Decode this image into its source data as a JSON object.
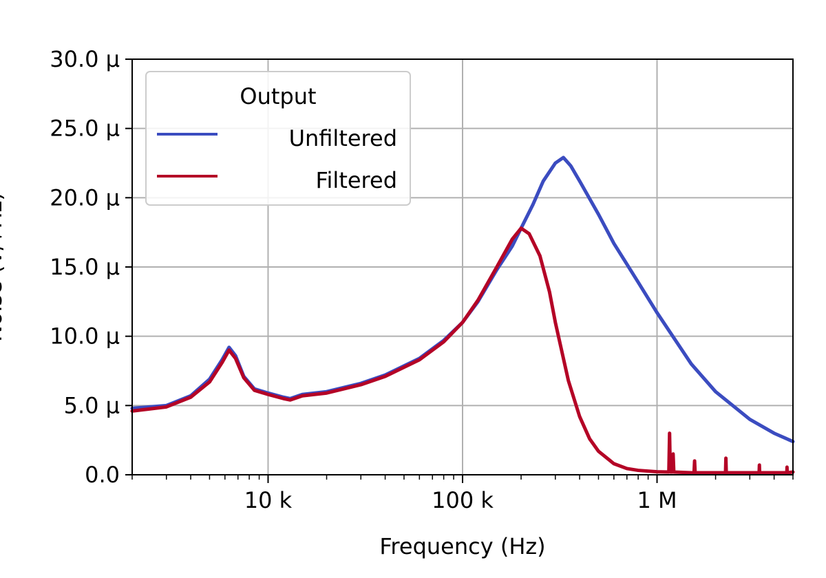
{
  "chart_data": {
    "type": "line",
    "title": "",
    "xlabel": "Frequency (Hz)",
    "ylabel": "Noise (V/√Hz)",
    "x_scale": "log",
    "xlim": [
      2000,
      5000000
    ],
    "ylim": [
      0,
      3e-05
    ],
    "grid": true,
    "legend": {
      "title": "Output",
      "placement": "top-left"
    },
    "x_ticks": [
      {
        "value": 10000,
        "label": "10 k"
      },
      {
        "value": 100000,
        "label": "100 k"
      },
      {
        "value": 1000000,
        "label": "1 M"
      }
    ],
    "y_ticks": [
      {
        "value": 0,
        "label": "0.0"
      },
      {
        "value": 5e-06,
        "label": "5.0 μ"
      },
      {
        "value": 1e-05,
        "label": "10.0 μ"
      },
      {
        "value": 1.5e-05,
        "label": "15.0 μ"
      },
      {
        "value": 2e-05,
        "label": "20.0 μ"
      },
      {
        "value": 2.5e-05,
        "label": "25.0 μ"
      },
      {
        "value": 3e-05,
        "label": "30.0 μ"
      }
    ],
    "series": [
      {
        "name": "Unfiltered",
        "color": "#3b4cc0",
        "line_width": 4,
        "x": [
          2000,
          3000,
          4000,
          5000,
          5800,
          6300,
          6800,
          7500,
          8500,
          10000,
          12000,
          13000,
          15000,
          20000,
          30000,
          40000,
          60000,
          80000,
          100000,
          120000,
          150000,
          180000,
          200000,
          230000,
          260000,
          300000,
          330000,
          360000,
          400000,
          500000,
          600000,
          800000,
          1000000,
          1500000,
          2000000,
          3000000,
          4000000,
          5000000
        ],
        "y": [
          4.8e-06,
          5e-06,
          5.7e-06,
          6.9e-06,
          8.3e-06,
          9.2e-06,
          8.6e-06,
          7.1e-06,
          6.2e-06,
          5.9e-06,
          5.6e-06,
          5.5e-06,
          5.8e-06,
          6e-06,
          6.6e-06,
          7.2e-06,
          8.4e-06,
          9.7e-06,
          1.1e-05,
          1.25e-05,
          1.48e-05,
          1.65e-05,
          1.78e-05,
          1.95e-05,
          2.12e-05,
          2.25e-05,
          2.29e-05,
          2.23e-05,
          2.12e-05,
          1.88e-05,
          1.67e-05,
          1.39e-05,
          1.17e-05,
          8e-06,
          6e-06,
          4e-06,
          3e-06,
          2.4e-06
        ]
      },
      {
        "name": "Filtered",
        "color": "#b40426",
        "line_width": 4,
        "x": [
          2000,
          3000,
          4000,
          5000,
          5800,
          6300,
          6800,
          7500,
          8500,
          10000,
          12000,
          13000,
          15000,
          20000,
          30000,
          40000,
          60000,
          80000,
          100000,
          120000,
          150000,
          180000,
          200000,
          220000,
          250000,
          280000,
          300000,
          350000,
          400000,
          450000,
          500000,
          600000,
          700000,
          800000,
          1000000,
          1150000,
          1160000,
          1170000,
          1200000,
          1210000,
          1220000,
          1500000,
          1550000,
          1560000,
          1570000,
          1600000,
          2200000,
          2250000,
          2260000,
          2270000,
          2400000,
          3300000,
          3350000,
          3360000,
          3370000,
          4600000,
          4650000,
          4660000,
          4670000,
          5000000
        ],
        "y": [
          4.6e-06,
          4.9e-06,
          5.6e-06,
          6.7e-06,
          8.1e-06,
          9e-06,
          8.4e-06,
          7e-06,
          6.1e-06,
          5.8e-06,
          5.5e-06,
          5.4e-06,
          5.7e-06,
          5.9e-06,
          6.5e-06,
          7.1e-06,
          8.3e-06,
          9.6e-06,
          1.1e-05,
          1.26e-05,
          1.5e-05,
          1.7e-05,
          1.78e-05,
          1.74e-05,
          1.58e-05,
          1.32e-05,
          1.1e-05,
          6.8e-06,
          4.2e-06,
          2.6e-06,
          1.7e-06,
          8e-07,
          4.5e-07,
          3.2e-07,
          2.2e-07,
          2e-07,
          3e-06,
          2e-07,
          2e-07,
          1.5e-06,
          2e-07,
          1.5e-07,
          1.5e-07,
          1e-06,
          1.5e-07,
          1.5e-07,
          1.5e-07,
          1.5e-07,
          1.2e-06,
          1.5e-07,
          1.5e-07,
          1.5e-07,
          1.5e-07,
          7e-07,
          1.5e-07,
          1.5e-07,
          1.5e-07,
          5.5e-07,
          1.5e-07,
          2e-07
        ]
      }
    ]
  }
}
